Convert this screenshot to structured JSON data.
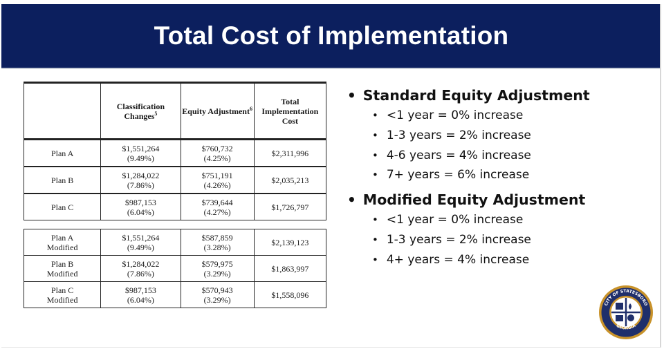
{
  "title": "Total Cost of Implementation",
  "table": {
    "headers": {
      "plan": "",
      "classification": "Classification Changes",
      "classification_note": "5",
      "equity": "Equity Adjustment",
      "equity_note": "6",
      "total": "Total Implementation Cost"
    },
    "rows": [
      {
        "plan": "Plan A",
        "cls_value": "$1,551,264",
        "cls_pct": "(9.49%)",
        "eq_value": "$760,732",
        "eq_pct": "(4.25%)",
        "total": "$2,311,996"
      },
      {
        "plan": "Plan B",
        "cls_value": "$1,284,022",
        "cls_pct": "(7.86%)",
        "eq_value": "$751,191",
        "eq_pct": "(4.26%)",
        "total": "$2,035,213"
      },
      {
        "plan": "Plan C",
        "cls_value": "$987,153",
        "cls_pct": "(6.04%)",
        "eq_value": "$739,644",
        "eq_pct": "(4.27%)",
        "total": "$1,726,797"
      }
    ],
    "modified_rows": [
      {
        "plan_line1": "Plan A",
        "plan_line2": "Modified",
        "cls_value": "$1,551,264",
        "cls_pct": "(9.49%)",
        "eq_value": "$587,859",
        "eq_pct": "(3.28%)",
        "total": "$2,139,123"
      },
      {
        "plan_line1": "Plan B",
        "plan_line2": "Modified",
        "cls_value": "$1,284,022",
        "cls_pct": "(7.86%)",
        "eq_value": "$579,975",
        "eq_pct": "(3.29%)",
        "total": "$1,863,997"
      },
      {
        "plan_line1": "Plan C",
        "plan_line2": "Modified",
        "cls_value": "$987,153",
        "cls_pct": "(6.04%)",
        "eq_value": "$570,943",
        "eq_pct": "(3.29%)",
        "total": "$1,558,096"
      }
    ]
  },
  "bullets": [
    {
      "title": "Standard Equity Adjustment",
      "items": [
        "<1 year = 0% increase",
        "1-3 years = 2% increase",
        "4-6 years = 4% increase",
        "7+ years = 6% increase"
      ]
    },
    {
      "title": "Modified Equity Adjustment",
      "items": [
        "<1 year = 0% increase",
        "1-3 years = 2% increase",
        "4+ years = 4% increase"
      ]
    }
  ],
  "seal": {
    "top_text": "CITY OF STATESBORO",
    "bottom_text": "GEORGIA",
    "year": "1803",
    "colors": {
      "ring": "#c8922a",
      "inner": "#1f2f6b",
      "bg": "#ffffff"
    }
  },
  "colors": {
    "header_bg": "#0c1f5e",
    "header_text": "#ffffff"
  }
}
